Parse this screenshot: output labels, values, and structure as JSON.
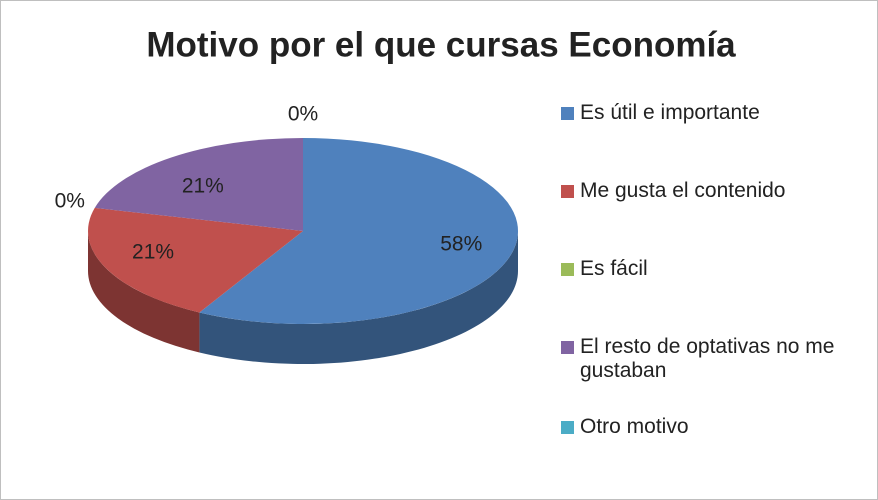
{
  "chart_data": {
    "type": "pie",
    "title": "Motivo por el que cursas Economía",
    "categories": [
      "Es útil e importante",
      "Me gusta el contenido",
      "Es fácil",
      "El resto de optativas no me gustaban",
      "Otro motivo"
    ],
    "values": [
      58,
      21,
      0,
      21,
      0
    ],
    "value_labels": [
      "58%",
      "21%",
      "0%",
      "21%",
      "0%"
    ],
    "colors": [
      "#4f81bd",
      "#c0504d",
      "#9bbb59",
      "#8064a2",
      "#4bacc6"
    ],
    "legend": "right"
  }
}
